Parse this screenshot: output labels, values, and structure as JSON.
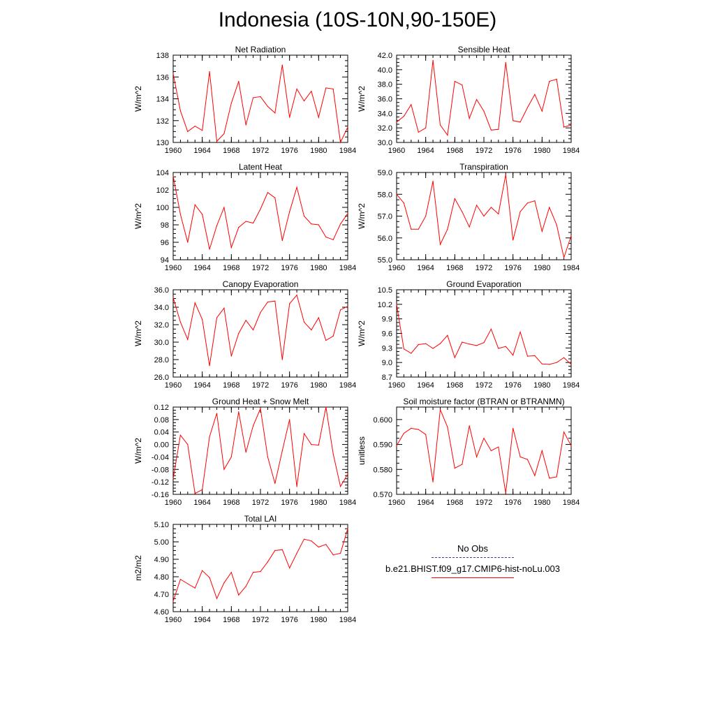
{
  "title": "Indonesia (10S-10N,90-150E)",
  "colors": {
    "model": "#ff0000",
    "obs": "#4040a0",
    "axis": "#000000"
  },
  "legend": {
    "obs_label": "No Obs",
    "model_label": "b.e21.BHIST.f09_g17.CMIP6-hist-noLu.003"
  },
  "chart_data": [
    {
      "type": "line",
      "title": "Net Radiation",
      "ylabel": "W/m^2",
      "x": [
        1960,
        1961,
        1962,
        1963,
        1964,
        1965,
        1966,
        1967,
        1968,
        1969,
        1970,
        1971,
        1972,
        1973,
        1974,
        1975,
        1976,
        1977,
        1978,
        1979,
        1980,
        1981,
        1982,
        1983,
        1984
      ],
      "xlim": [
        1960,
        1984
      ],
      "xticks": [
        "1960",
        "1964",
        "1968",
        "1972",
        "1976",
        "1980",
        "1984"
      ],
      "ylim": [
        130,
        138
      ],
      "yticks": [
        "130",
        "132",
        "134",
        "136",
        "138"
      ],
      "series": [
        {
          "values": [
            136.3,
            132.9,
            131.0,
            131.5,
            131.1,
            136.5,
            130.1,
            130.8,
            133.6,
            135.6,
            131.6,
            134.1,
            134.2,
            133.3,
            132.7,
            137.1,
            132.3,
            134.9,
            133.8,
            134.7,
            132.3,
            135.0,
            134.9,
            130.0,
            131.4
          ]
        }
      ]
    },
    {
      "type": "line",
      "title": "Sensible Heat",
      "ylabel": "W/m^2",
      "x": [
        1960,
        1961,
        1962,
        1963,
        1964,
        1965,
        1966,
        1967,
        1968,
        1969,
        1970,
        1971,
        1972,
        1973,
        1974,
        1975,
        1976,
        1977,
        1978,
        1979,
        1980,
        1981,
        1982,
        1983,
        1984
      ],
      "xlim": [
        1960,
        1984
      ],
      "xticks": [
        "1960",
        "1964",
        "1968",
        "1972",
        "1976",
        "1980",
        "1984"
      ],
      "ylim": [
        30,
        42
      ],
      "yticks": [
        "30.0",
        "32.0",
        "34.0",
        "36.0",
        "38.0",
        "40.0",
        "42.0"
      ],
      "series": [
        {
          "values": [
            32.8,
            33.6,
            35.2,
            31.4,
            32.0,
            41.3,
            32.4,
            31.0,
            38.4,
            37.9,
            33.3,
            35.9,
            34.3,
            31.7,
            31.8,
            41.0,
            33.0,
            32.8,
            34.8,
            36.6,
            34.3,
            38.4,
            38.7,
            32.1,
            32.4
          ]
        }
      ]
    },
    {
      "type": "line",
      "title": "Latent Heat",
      "ylabel": "W/m^2",
      "x": [
        1960,
        1961,
        1962,
        1963,
        1964,
        1965,
        1966,
        1967,
        1968,
        1969,
        1970,
        1971,
        1972,
        1973,
        1974,
        1975,
        1976,
        1977,
        1978,
        1979,
        1980,
        1981,
        1982,
        1983,
        1984
      ],
      "xlim": [
        1960,
        1984
      ],
      "xticks": [
        "1960",
        "1964",
        "1968",
        "1972",
        "1976",
        "1980",
        "1984"
      ],
      "ylim": [
        94,
        104
      ],
      "yticks": [
        "94",
        "96",
        "98",
        "100",
        "102",
        "104"
      ],
      "series": [
        {
          "values": [
            103.6,
            99.2,
            96.0,
            100.3,
            99.2,
            95.2,
            97.9,
            100.0,
            95.4,
            97.7,
            98.4,
            98.2,
            99.8,
            101.7,
            101.1,
            96.2,
            99.5,
            102.3,
            99.0,
            98.1,
            98.0,
            96.6,
            96.3,
            98.1,
            99.3
          ]
        }
      ]
    },
    {
      "type": "line",
      "title": "Transpiration",
      "ylabel": "W/m^2",
      "x": [
        1960,
        1961,
        1962,
        1963,
        1964,
        1965,
        1966,
        1967,
        1968,
        1969,
        1970,
        1971,
        1972,
        1973,
        1974,
        1975,
        1976,
        1977,
        1978,
        1979,
        1980,
        1981,
        1982,
        1983,
        1984
      ],
      "xlim": [
        1960,
        1984
      ],
      "xticks": [
        "1960",
        "1964",
        "1968",
        "1972",
        "1976",
        "1980",
        "1984"
      ],
      "ylim": [
        55,
        59
      ],
      "yticks": [
        "55.0",
        "56.0",
        "57.0",
        "58.0",
        "59.0"
      ],
      "series": [
        {
          "values": [
            58.0,
            57.6,
            56.4,
            56.4,
            57.0,
            58.6,
            55.7,
            56.4,
            57.8,
            57.2,
            56.5,
            57.5,
            57.0,
            57.4,
            57.1,
            58.9,
            55.9,
            57.2,
            57.6,
            57.7,
            56.3,
            57.4,
            56.6,
            55.1,
            56.1
          ]
        }
      ]
    },
    {
      "type": "line",
      "title": "Canopy Evaporation",
      "ylabel": "W/m^2",
      "x": [
        1960,
        1961,
        1962,
        1963,
        1964,
        1965,
        1966,
        1967,
        1968,
        1969,
        1970,
        1971,
        1972,
        1973,
        1974,
        1975,
        1976,
        1977,
        1978,
        1979,
        1980,
        1981,
        1982,
        1983,
        1984
      ],
      "xlim": [
        1960,
        1984
      ],
      "xticks": [
        "1960",
        "1964",
        "1968",
        "1972",
        "1976",
        "1980",
        "1984"
      ],
      "ylim": [
        26,
        36
      ],
      "yticks": [
        "26.0",
        "28.0",
        "30.0",
        "32.0",
        "34.0",
        "36.0"
      ],
      "series": [
        {
          "values": [
            35.1,
            32.3,
            30.3,
            34.5,
            32.6,
            27.3,
            32.8,
            33.9,
            28.4,
            31.0,
            32.5,
            31.4,
            33.4,
            34.6,
            34.7,
            28.0,
            34.4,
            35.4,
            32.3,
            31.4,
            32.8,
            30.2,
            30.7,
            33.7,
            34.1
          ]
        }
      ]
    },
    {
      "type": "line",
      "title": "Ground Evaporation",
      "ylabel": "W/m^2",
      "x": [
        1960,
        1961,
        1962,
        1963,
        1964,
        1965,
        1966,
        1967,
        1968,
        1969,
        1970,
        1971,
        1972,
        1973,
        1974,
        1975,
        1976,
        1977,
        1978,
        1979,
        1980,
        1981,
        1982,
        1983,
        1984
      ],
      "xlim": [
        1960,
        1984
      ],
      "xticks": [
        "1960",
        "1964",
        "1968",
        "1972",
        "1976",
        "1980",
        "1984"
      ],
      "ylim": [
        8.7,
        10.5
      ],
      "yticks": [
        "8.7",
        "9.0",
        "9.3",
        "9.6",
        "9.9",
        "10.2",
        "10.5"
      ],
      "series": [
        {
          "values": [
            10.2,
            9.28,
            9.19,
            9.37,
            9.39,
            9.29,
            9.39,
            9.56,
            9.1,
            9.42,
            9.38,
            9.35,
            9.41,
            9.69,
            9.29,
            9.33,
            9.15,
            9.63,
            9.13,
            9.14,
            8.97,
            8.96,
            9.0,
            9.1,
            8.96
          ]
        }
      ]
    },
    {
      "type": "line",
      "title": "Ground Heat + Snow Melt",
      "ylabel": "W/m^2",
      "x": [
        1960,
        1961,
        1962,
        1963,
        1964,
        1965,
        1966,
        1967,
        1968,
        1969,
        1970,
        1971,
        1972,
        1973,
        1974,
        1975,
        1976,
        1977,
        1978,
        1979,
        1980,
        1981,
        1982,
        1983,
        1984
      ],
      "xlim": [
        1960,
        1984
      ],
      "xticks": [
        "1960",
        "1964",
        "1968",
        "1972",
        "1976",
        "1980",
        "1984"
      ],
      "ylim": [
        -0.16,
        0.12
      ],
      "yticks": [
        "-0.16",
        "-0.12",
        "-0.08",
        "-0.04",
        "0.00",
        "0.04",
        "0.08",
        "0.12"
      ],
      "series": [
        {
          "values": [
            -0.11,
            0.03,
            0.0,
            -0.157,
            -0.145,
            0.025,
            0.1,
            -0.08,
            -0.04,
            0.105,
            -0.025,
            0.06,
            0.115,
            -0.04,
            -0.125,
            -0.02,
            0.08,
            -0.135,
            0.035,
            0.0,
            -0.002,
            0.12,
            -0.03,
            -0.135,
            -0.095
          ]
        }
      ]
    },
    {
      "type": "line",
      "title": "Soil moisture factor (BTRAN or BTRANMN)",
      "ylabel": "unitless",
      "x": [
        1960,
        1961,
        1962,
        1963,
        1964,
        1965,
        1966,
        1967,
        1968,
        1969,
        1970,
        1971,
        1972,
        1973,
        1974,
        1975,
        1976,
        1977,
        1978,
        1979,
        1980,
        1981,
        1982,
        1983,
        1984
      ],
      "xlim": [
        1960,
        1984
      ],
      "xticks": [
        "1960",
        "1964",
        "1968",
        "1972",
        "1976",
        "1980",
        "1984"
      ],
      "ylim": [
        0.57,
        0.605
      ],
      "yticks": [
        "0.570",
        "0.580",
        "0.590",
        "0.600"
      ],
      "series": [
        {
          "values": [
            0.5895,
            0.5945,
            0.5965,
            0.596,
            0.594,
            0.575,
            0.604,
            0.597,
            0.5805,
            0.582,
            0.5975,
            0.585,
            0.5925,
            0.5875,
            0.589,
            0.5705,
            0.5965,
            0.585,
            0.584,
            0.5775,
            0.5875,
            0.5765,
            0.577,
            0.595,
            0.5895
          ]
        }
      ]
    },
    {
      "type": "line",
      "title": "Total LAI",
      "ylabel": "m2/m2",
      "x": [
        1960,
        1961,
        1962,
        1963,
        1964,
        1965,
        1966,
        1967,
        1968,
        1969,
        1970,
        1971,
        1972,
        1973,
        1974,
        1975,
        1976,
        1977,
        1978,
        1979,
        1980,
        1981,
        1982,
        1983,
        1984
      ],
      "xlim": [
        1960,
        1984
      ],
      "xticks": [
        "1960",
        "1964",
        "1968",
        "1972",
        "1976",
        "1980",
        "1984"
      ],
      "ylim": [
        4.6,
        5.1
      ],
      "yticks": [
        "4.60",
        "4.70",
        "4.80",
        "4.90",
        "5.00",
        "5.10"
      ],
      "series": [
        {
          "values": [
            4.66,
            4.785,
            4.76,
            4.735,
            4.835,
            4.795,
            4.675,
            4.765,
            4.825,
            4.695,
            4.745,
            4.825,
            4.83,
            4.885,
            4.95,
            4.955,
            4.85,
            4.935,
            5.015,
            5.005,
            4.97,
            4.985,
            4.925,
            4.935,
            5.075
          ]
        }
      ]
    }
  ]
}
